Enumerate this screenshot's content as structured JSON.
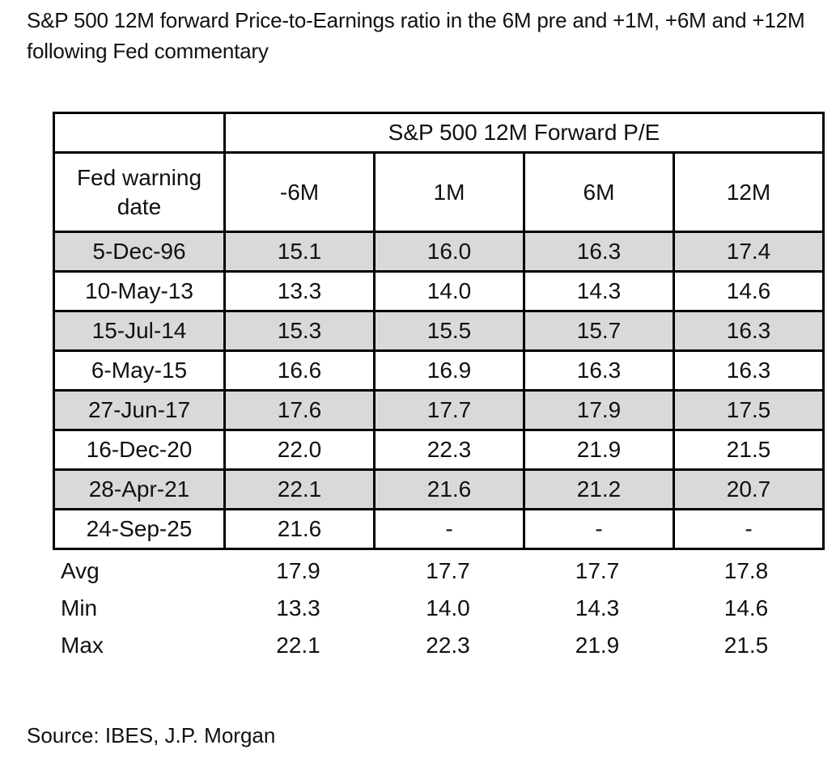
{
  "colors": {
    "background": "#ffffff",
    "border": "#000000",
    "row_shade": "#d9d9d9",
    "text": "#111111"
  },
  "chart_data": {
    "type": "table",
    "title": "S&P 500 12M forward Price-to-Earnings ratio in the 6M pre and +1M, +6M and +12M following Fed commentary",
    "group_header": "S&P 500 12M Forward P/E",
    "row_header": "Fed warning date",
    "columns": [
      "-6M",
      "1M",
      "6M",
      "12M"
    ],
    "rows": [
      {
        "date": "5-Dec-96",
        "values": [
          "15.1",
          "16.0",
          "16.3",
          "17.4"
        ],
        "shaded": true
      },
      {
        "date": "10-May-13",
        "values": [
          "13.3",
          "14.0",
          "14.3",
          "14.6"
        ],
        "shaded": false
      },
      {
        "date": "15-Jul-14",
        "values": [
          "15.3",
          "15.5",
          "15.7",
          "16.3"
        ],
        "shaded": true
      },
      {
        "date": "6-May-15",
        "values": [
          "16.6",
          "16.9",
          "16.3",
          "16.3"
        ],
        "shaded": false
      },
      {
        "date": "27-Jun-17",
        "values": [
          "17.6",
          "17.7",
          "17.9",
          "17.5"
        ],
        "shaded": true
      },
      {
        "date": "16-Dec-20",
        "values": [
          "22.0",
          "22.3",
          "21.9",
          "21.5"
        ],
        "shaded": false
      },
      {
        "date": "28-Apr-21",
        "values": [
          "22.1",
          "21.6",
          "21.2",
          "20.7"
        ],
        "shaded": true
      },
      {
        "date": "24-Sep-25",
        "values": [
          "21.6",
          "-",
          "-",
          "-"
        ],
        "shaded": false
      }
    ],
    "summary": [
      {
        "label": "Avg",
        "values": [
          "17.9",
          "17.7",
          "17.7",
          "17.8"
        ]
      },
      {
        "label": "Min",
        "values": [
          "13.3",
          "14.0",
          "14.3",
          "14.6"
        ]
      },
      {
        "label": "Max",
        "values": [
          "22.1",
          "22.3",
          "21.9",
          "21.5"
        ]
      }
    ],
    "source": "Source: IBES, J.P. Morgan"
  }
}
